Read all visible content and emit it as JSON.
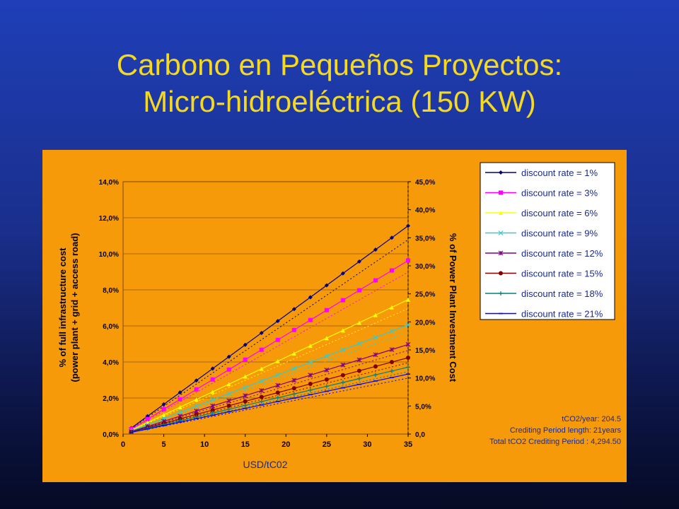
{
  "slide": {
    "title_line1": "Carbono en Pequeños Proyectos:",
    "title_line2": "Micro-hidroeléctrica (150 KW)"
  },
  "colors": {
    "chart_background": "#f79a0a",
    "title": "#f5d820"
  },
  "chart_data": {
    "type": "line",
    "xlabel": "USD/tC02",
    "ylabel_left": [
      "% of full infrastructure cost",
      "(power plant + grid + access road)"
    ],
    "ylabel_right": "% of Power Plant Investment Cost",
    "xlim": [
      0,
      35
    ],
    "ylim_left": [
      0,
      14
    ],
    "ylim_right": [
      0,
      45
    ],
    "x_ticks": [
      "0",
      "5",
      "10",
      "15",
      "20",
      "25",
      "30",
      "35"
    ],
    "y_left_ticks": [
      "0,0%",
      "2,0%",
      "4,0%",
      "6,0%",
      "8,0%",
      "10,0%",
      "12,0%",
      "14,0%"
    ],
    "y_right_ticks": [
      "0,0",
      "5,0%",
      "10,0%",
      "15,0%",
      "20,0%",
      "25,0%",
      "30,0%",
      "35,0%",
      "40,0%",
      "45,0%"
    ],
    "grid": true,
    "legend_position": "top-right",
    "x": [
      1,
      3,
      5,
      7,
      9,
      11,
      13,
      15,
      17,
      19,
      21,
      23,
      25,
      27,
      29,
      31,
      33,
      35
    ],
    "series": [
      {
        "name": "discount rate = 1%",
        "color": "#000080",
        "marker": "diamond",
        "slope": 0.33,
        "end_value": 11.6
      },
      {
        "name": "discount rate = 3%",
        "color": "#ff00ff",
        "marker": "square",
        "slope": 0.275,
        "end_value": 9.6
      },
      {
        "name": "discount rate = 6%",
        "color": "#ffff00",
        "marker": "triangle",
        "slope": 0.213,
        "end_value": 7.5
      },
      {
        "name": "discount rate = 9%",
        "color": "#33cccc",
        "marker": "x",
        "slope": 0.173,
        "end_value": 6.05
      },
      {
        "name": "discount rate = 12%",
        "color": "#800080",
        "marker": "star",
        "slope": 0.142,
        "end_value": 5.0
      },
      {
        "name": "discount rate = 15%",
        "color": "#800000",
        "marker": "circle",
        "slope": 0.121,
        "end_value": 4.25
      },
      {
        "name": "discount rate = 18%",
        "color": "#008080",
        "marker": "plus",
        "slope": 0.106,
        "end_value": 3.75
      },
      {
        "name": "discount rate = 21%",
        "color": "#0000ff",
        "marker": "dash",
        "slope": 0.095,
        "end_value": 3.3
      }
    ],
    "annotations": [
      "tCO2/year: 204.5",
      "Crediting Period length: 21years",
      "Total  tCO2 Crediting Period : 4,294.50"
    ]
  }
}
